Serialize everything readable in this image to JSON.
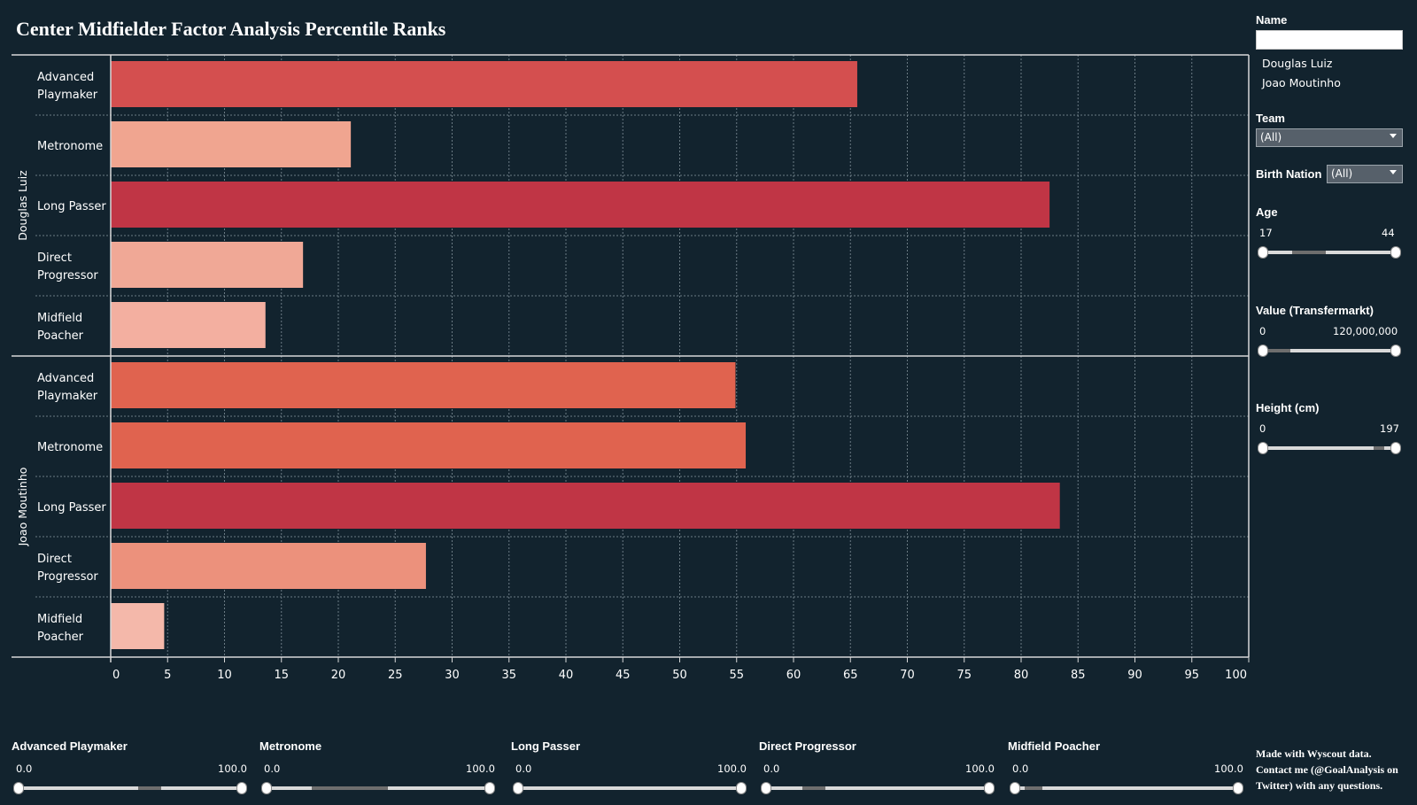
{
  "title": "Center Midfielder Factor Analysis Percentile Ranks",
  "chart_data": {
    "type": "bar",
    "orientation": "horizontal",
    "xlim": [
      0,
      100
    ],
    "x_ticks": [
      "0",
      "5",
      "10",
      "15",
      "20",
      "25",
      "30",
      "35",
      "40",
      "45",
      "50",
      "55",
      "60",
      "65",
      "70",
      "75",
      "80",
      "85",
      "90",
      "95",
      "100"
    ],
    "grid": true,
    "groups": [
      {
        "player": "Douglas Luiz",
        "bars": [
          {
            "label": [
              "Advanced",
              "Playmaker"
            ],
            "value": 65.6,
            "color": "#d44f4f"
          },
          {
            "label": [
              "Metronome"
            ],
            "value": 21.1,
            "color": "#f0a590"
          },
          {
            "label": [
              "Long Passer"
            ],
            "value": 82.5,
            "color": "#c03545"
          },
          {
            "label": [
              "Direct",
              "Progressor"
            ],
            "value": 16.9,
            "color": "#f0a896"
          },
          {
            "label": [
              "Midfield",
              "Poacher"
            ],
            "value": 13.6,
            "color": "#f3afa0"
          }
        ]
      },
      {
        "player": "Joao Moutinho",
        "bars": [
          {
            "label": [
              "Advanced",
              "Playmaker"
            ],
            "value": 54.9,
            "color": "#e0634f"
          },
          {
            "label": [
              "Metronome"
            ],
            "value": 55.8,
            "color": "#e0634f"
          },
          {
            "label": [
              "Long Passer"
            ],
            "value": 83.4,
            "color": "#c03545"
          },
          {
            "label": [
              "Direct",
              "Progressor"
            ],
            "value": 27.7,
            "color": "#ec917c"
          },
          {
            "label": [
              "Midfield",
              "Poacher"
            ],
            "value": 4.7,
            "color": "#f4b8aa"
          }
        ]
      }
    ]
  },
  "filters": {
    "name": {
      "label": "Name",
      "value": "",
      "items": [
        "Douglas Luiz",
        "Joao Moutinho"
      ]
    },
    "team": {
      "label": "Team",
      "value": "(All)"
    },
    "birth_nation": {
      "label": "Birth Nation",
      "value": "(All)"
    },
    "age": {
      "label": "Age",
      "min_label": "17",
      "max_label": "44"
    },
    "value": {
      "label": "Value (Transfermarkt)",
      "min_label": "0",
      "max_label": "120,000,000"
    },
    "height": {
      "label": "Height (cm)",
      "min_label": "0",
      "max_label": "197"
    }
  },
  "bottom_filters": [
    {
      "label": "Advanced Playmaker",
      "min_label": "0.0",
      "max_label": "100.0"
    },
    {
      "label": "Metronome",
      "min_label": "0.0",
      "max_label": "100.0"
    },
    {
      "label": "Long Passer",
      "min_label": "0.0",
      "max_label": "100.0"
    },
    {
      "label": "Direct Progressor",
      "min_label": "0.0",
      "max_label": "100.0"
    },
    {
      "label": "Midfield Poacher",
      "min_label": "0.0",
      "max_label": "100.0"
    }
  ],
  "footer": {
    "line1": "Made with Wyscout data.",
    "line2": "Contact me (@GoalAnalysis on",
    "line3": "Twitter) with any questions."
  },
  "colors": {
    "background": "#12232e",
    "frame": "#d8d8d8",
    "grid": "#6b7b84"
  }
}
